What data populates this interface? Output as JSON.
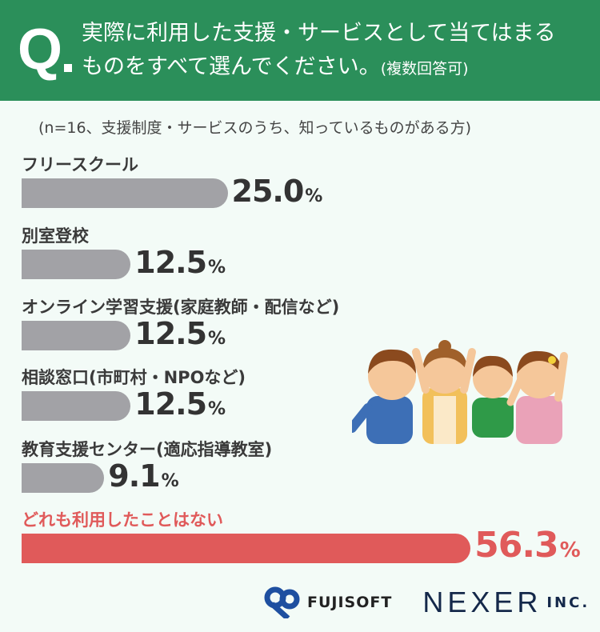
{
  "header": {
    "q_mark": "Q",
    "line1": "実際に利用した支援・サービスとして当てはまる",
    "line2": "ものをすべて選んでください。",
    "line2_note": "(複数回答可)",
    "bg_color": "#2b8f5a"
  },
  "note": "(n=16、支援制度・サービスのうち、知っているものがある方)",
  "chart_data": {
    "type": "bar",
    "orientation": "horizontal",
    "unit": "%",
    "categories": [
      "フリースクール",
      "別室登校",
      "オンライン学習支援(家庭教師・配信など)",
      "相談窓口(市町村・NPOなど)",
      "教育支援センター(適応指導教室)",
      "どれも利用したことはない"
    ],
    "values": [
      25.0,
      12.5,
      12.5,
      12.5,
      9.1,
      56.3
    ],
    "labels": [
      "25.0",
      "12.5",
      "12.5",
      "12.5",
      "9.1",
      "56.3"
    ],
    "colors": [
      "#a2a2a6",
      "#a2a2a6",
      "#a2a2a6",
      "#a2a2a6",
      "#a2a2a6",
      "#e05a5a"
    ],
    "highlight_index": 5
  },
  "logos": {
    "fujisoft": "FUJISOFT",
    "nexer": "NEXER",
    "inc": "INC."
  }
}
